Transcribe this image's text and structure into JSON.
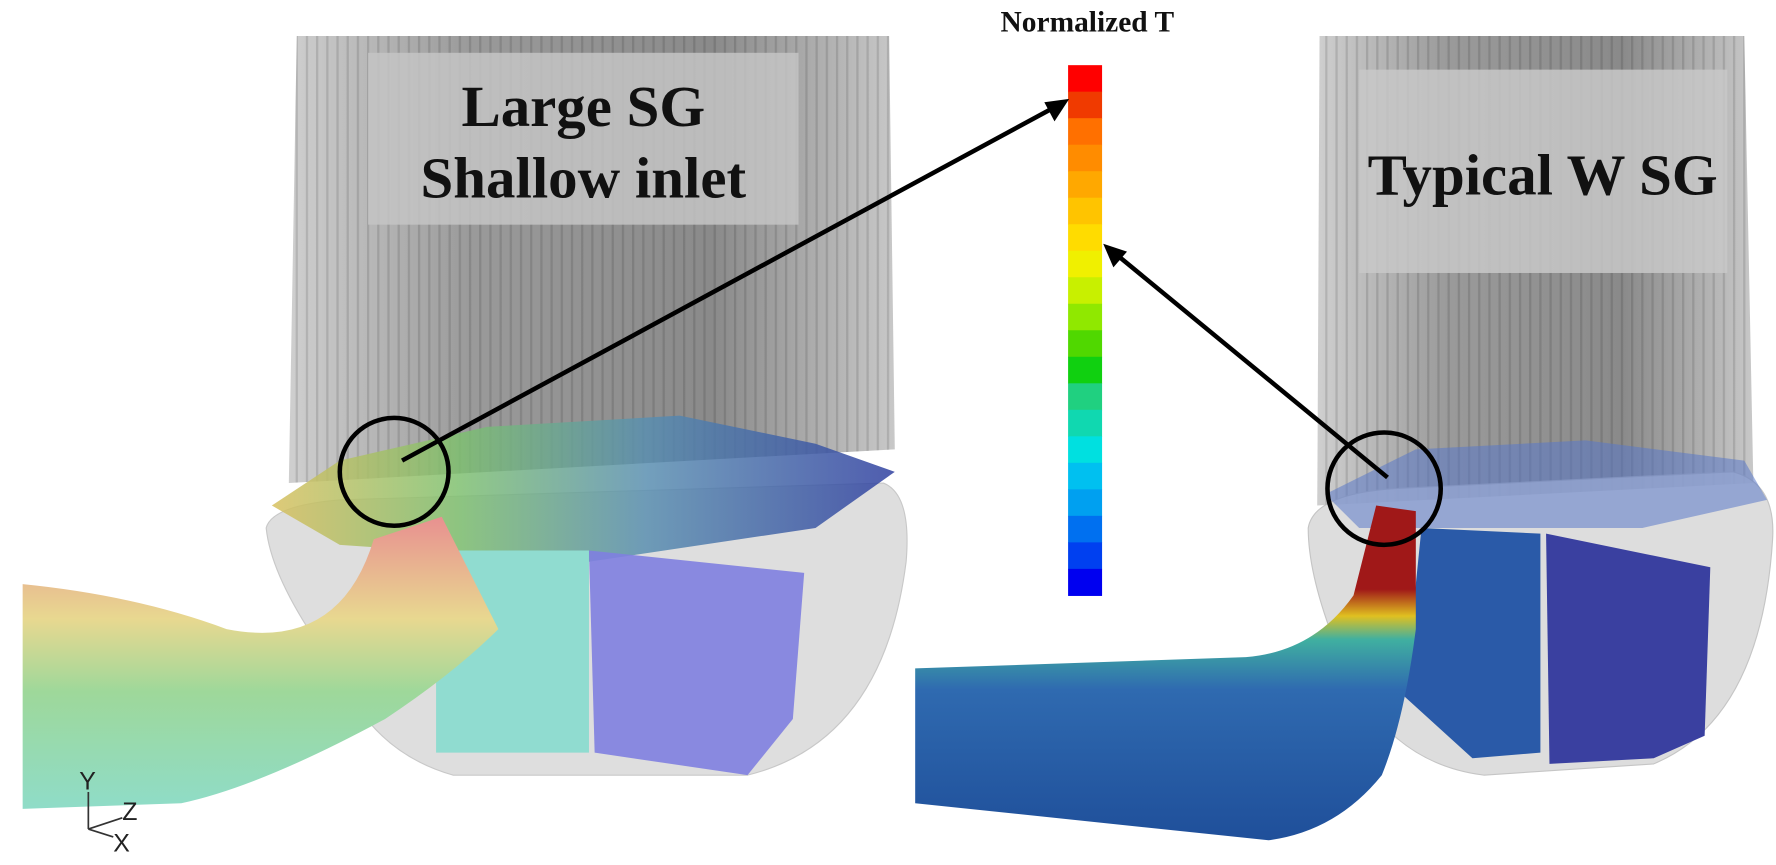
{
  "colorbar": {
    "title": "Normalized T"
  },
  "panels": [
    {
      "label_lines": [
        "Large SG",
        "Shallow inlet"
      ]
    },
    {
      "label_lines": [
        "Typical W SG"
      ]
    }
  ],
  "axes_triad": {
    "y": "Y",
    "z": "Z",
    "x": "X"
  }
}
